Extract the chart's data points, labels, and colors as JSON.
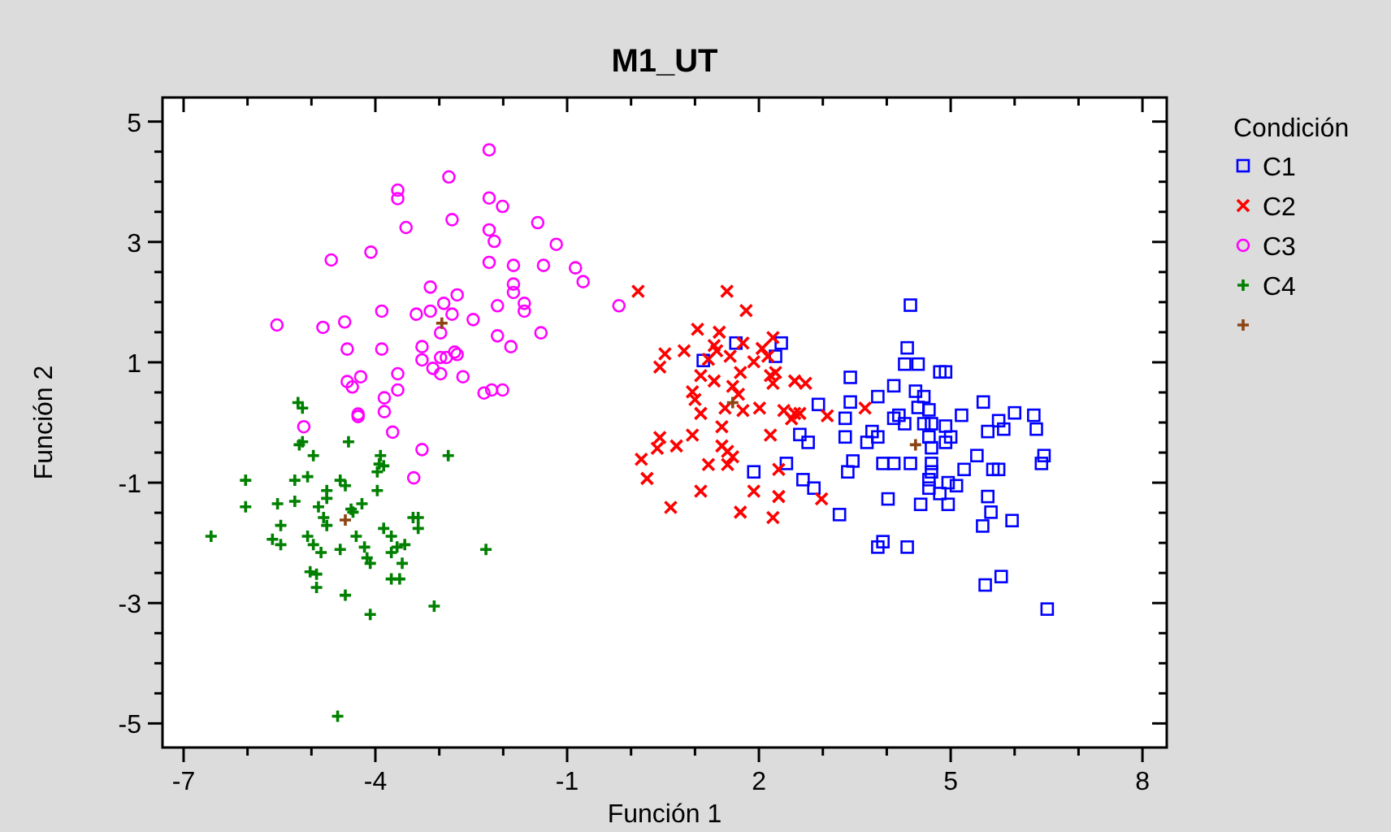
{
  "chart_data": {
    "type": "scatter",
    "title": "M1_UT",
    "xlabel": "Función 1",
    "ylabel": "Función 2",
    "legend_title": "Condición",
    "legend": "right",
    "grid": false,
    "xlim": [
      -7.33,
      8.38
    ],
    "ylim": [
      -5.4,
      5.4
    ],
    "xticks": [
      -7,
      {
        "value": -6,
        "label": null
      },
      {
        "value": -5,
        "label": null
      },
      -4,
      {
        "value": -3,
        "label": null
      },
      {
        "value": -2,
        "label": null
      },
      -1,
      {
        "value": 0,
        "label": null
      },
      {
        "value": 1,
        "label": null
      },
      2,
      {
        "value": 3,
        "label": null
      },
      {
        "value": 4,
        "label": null
      },
      5,
      {
        "value": 6,
        "label": null
      },
      {
        "value": 7,
        "label": null
      },
      8
    ],
    "yticks": [
      -5,
      {
        "value": -4.5,
        "label": null
      },
      {
        "value": -4,
        "label": null
      },
      {
        "value": -3.5,
        "label": null
      },
      -3,
      {
        "value": -2.5,
        "label": null
      },
      {
        "value": -2,
        "label": null
      },
      {
        "value": -1.5,
        "label": null
      },
      -1,
      {
        "value": -0.5,
        "label": null
      },
      {
        "value": 0,
        "label": null
      },
      {
        "value": 0.5,
        "label": null
      },
      1,
      {
        "value": 1.5,
        "label": null
      },
      {
        "value": 2,
        "label": null
      },
      {
        "value": 2.5,
        "label": null
      },
      3,
      {
        "value": 3.5,
        "label": null
      },
      {
        "value": 4,
        "label": null
      },
      {
        "value": 4.5,
        "label": null
      },
      5
    ],
    "series": [
      {
        "name": "C1",
        "color": "#0000ff",
        "marker": "square",
        "x": [
          1.64,
          2.35,
          2.26,
          1.13,
          3.43,
          3.43,
          2.93,
          3.86,
          3.35,
          2.64,
          2.77,
          3.35,
          3.77,
          2.43,
          1.92,
          2.69,
          2.86,
          3.47,
          3.26,
          4.37,
          4.32,
          4.28,
          4.49,
          4.11,
          4.45,
          4.58,
          4.83,
          4.92,
          4.49,
          4.66,
          4.11,
          4.19,
          4.28,
          4.58,
          4.7,
          4.92,
          5.17,
          5.51,
          6.0,
          6.3,
          5.75,
          5.83,
          5.58,
          6.34,
          3.86,
          3.69,
          4.66,
          4.92,
          5.0,
          4.7,
          6.46,
          6.42,
          5.41,
          3.39,
          3.94,
          4.11,
          4.37,
          4.7,
          4.7,
          5.21,
          5.66,
          5.75,
          4.66,
          4.96,
          5.09,
          4.66,
          4.83,
          5.58,
          4.02,
          4.53,
          4.96,
          5.63,
          5.5,
          5.96,
          3.94,
          3.86,
          4.32,
          5.79,
          5.54,
          6.51
        ],
        "values": [
          1.32,
          1.32,
          1.1,
          1.03,
          0.75,
          0.34,
          0.3,
          0.43,
          0.07,
          -0.2,
          -0.33,
          -0.24,
          -0.15,
          -0.68,
          -0.82,
          -0.95,
          -1.09,
          -0.64,
          -1.53,
          1.95,
          1.24,
          0.97,
          0.97,
          0.61,
          0.52,
          0.43,
          0.84,
          0.84,
          0.25,
          0.21,
          0.07,
          0.12,
          -0.02,
          -0.02,
          -0.02,
          -0.06,
          0.12,
          0.34,
          0.16,
          0.12,
          0.03,
          -0.11,
          -0.15,
          -0.11,
          -0.24,
          -0.33,
          -0.24,
          -0.33,
          -0.24,
          -0.42,
          -0.55,
          -0.68,
          -0.55,
          -0.82,
          -0.68,
          -0.68,
          -0.68,
          -0.68,
          -0.82,
          -0.78,
          -0.78,
          -0.78,
          -0.95,
          -1.0,
          -1.05,
          -1.09,
          -1.18,
          -1.23,
          -1.27,
          -1.36,
          -1.36,
          -1.49,
          -1.72,
          -1.63,
          -1.98,
          -2.07,
          -2.07,
          -2.56,
          -2.7,
          -3.1
        ]
      },
      {
        "name": "C2",
        "color": "#ff0000",
        "marker": "cross",
        "x": [
          0.11,
          1.5,
          1.8,
          1.04,
          1.38,
          1.3,
          1.34,
          0.53,
          0.83,
          0.45,
          1.21,
          1.55,
          1.75,
          2.05,
          2.22,
          1.92,
          2.14,
          1.09,
          1.3,
          1.71,
          2.18,
          2.26,
          2.22,
          2.56,
          2.73,
          1.59,
          1.68,
          0.96,
          1.0,
          1.09,
          1.47,
          1.75,
          2.01,
          2.39,
          2.56,
          2.64,
          2.51,
          3.07,
          3.66,
          1.42,
          2.18,
          0.96,
          0.45,
          0.41,
          0.71,
          0.16,
          1.42,
          1.51,
          1.59,
          1.21,
          1.51,
          0.25,
          2.31,
          1.09,
          1.92,
          2.31,
          2.98,
          0.62,
          1.71,
          2.22
        ],
        "values": [
          2.18,
          2.18,
          1.86,
          1.55,
          1.5,
          1.28,
          1.19,
          1.14,
          1.19,
          0.92,
          1.05,
          1.1,
          1.32,
          1.23,
          1.41,
          1.01,
          1.1,
          0.78,
          0.69,
          0.83,
          0.78,
          0.83,
          0.65,
          0.69,
          0.65,
          0.6,
          0.47,
          0.51,
          0.38,
          0.15,
          0.24,
          0.2,
          0.24,
          0.2,
          0.15,
          0.15,
          0.06,
          0.11,
          0.24,
          -0.07,
          -0.21,
          -0.21,
          -0.25,
          -0.43,
          -0.39,
          -0.61,
          -0.39,
          -0.48,
          -0.57,
          -0.7,
          -0.7,
          -0.93,
          -0.78,
          -1.14,
          -1.14,
          -1.23,
          -1.27,
          -1.41,
          -1.49,
          -1.58
        ]
      },
      {
        "name": "C3",
        "color": "#ff00ff",
        "marker": "circle",
        "x": [
          -2.22,
          -2.85,
          -3.65,
          -3.65,
          -2.22,
          -2.01,
          -3.52,
          -2.8,
          -1.46,
          -2.22,
          -2.14,
          -1.17,
          -4.69,
          -4.07,
          -2.22,
          -1.84,
          -1.37,
          -0.87,
          -0.75,
          -1.84,
          -1.84,
          -3.14,
          -2.72,
          -2.93,
          -2.09,
          -1.67,
          -1.67,
          -0.19,
          -5.54,
          -4.82,
          -4.48,
          -3.9,
          -3.36,
          -3.14,
          -2.8,
          -2.47,
          -2.98,
          -2.09,
          -1.41,
          -1.88,
          -4.44,
          -3.9,
          -3.27,
          -3.27,
          -2.98,
          -2.89,
          -2.76,
          -2.72,
          -3.1,
          -2.98,
          -2.63,
          -3.65,
          -3.65,
          -4.44,
          -4.36,
          -4.23,
          -2.3,
          -2.18,
          -2.01,
          -3.86,
          -3.86,
          -4.27,
          -4.27,
          -5.12,
          -3.73,
          -3.27,
          -3.4
        ],
        "values": [
          4.53,
          4.08,
          3.86,
          3.72,
          3.73,
          3.59,
          3.24,
          3.37,
          3.32,
          3.2,
          3.01,
          2.96,
          2.7,
          2.83,
          2.66,
          2.61,
          2.61,
          2.57,
          2.34,
          2.3,
          2.16,
          2.25,
          2.12,
          1.98,
          1.94,
          1.98,
          1.85,
          1.94,
          1.62,
          1.58,
          1.67,
          1.85,
          1.8,
          1.85,
          1.8,
          1.71,
          1.49,
          1.44,
          1.49,
          1.26,
          1.22,
          1.22,
          1.26,
          1.04,
          1.08,
          1.08,
          1.17,
          1.13,
          0.9,
          0.81,
          0.76,
          0.81,
          0.54,
          0.68,
          0.59,
          0.76,
          0.49,
          0.54,
          0.54,
          0.41,
          0.18,
          0.14,
          0.1,
          -0.07,
          -0.16,
          -0.45,
          -0.92
        ]
      },
      {
        "name": "C4",
        "color": "#008000",
        "marker": "plus",
        "x": [
          -5.21,
          -5.14,
          -5.14,
          -5.19,
          -4.42,
          -4.97,
          -3.92,
          -2.86,
          -3.94,
          -3.87,
          -3.97,
          -6.03,
          -5.26,
          -5.06,
          -4.55,
          -4.47,
          -4.76,
          -4.76,
          -3.97,
          -6.03,
          -5.53,
          -5.26,
          -4.89,
          -4.21,
          -4.38,
          -4.35,
          -4.81,
          -4.76,
          -5.48,
          -6.57,
          -5.61,
          -5.48,
          -5.06,
          -4.97,
          -4.85,
          -4.55,
          -4.3,
          -4.17,
          -4.13,
          -4.08,
          -3.87,
          -3.75,
          -3.66,
          -3.54,
          -3.75,
          -3.58,
          -3.41,
          -3.33,
          -3.33,
          -2.27,
          -5.02,
          -4.92,
          -4.92,
          -3.75,
          -3.62,
          -4.47,
          -4.08,
          -3.08,
          -4.59
        ],
        "values": [
          0.33,
          0.24,
          -0.32,
          -0.37,
          -0.32,
          -0.55,
          -0.55,
          -0.55,
          -0.69,
          -0.72,
          -0.82,
          -0.96,
          -0.96,
          -0.9,
          -0.96,
          -1.05,
          -1.13,
          -1.26,
          -1.13,
          -1.4,
          -1.35,
          -1.31,
          -1.4,
          -1.35,
          -1.44,
          -1.49,
          -1.58,
          -1.71,
          -1.71,
          -1.89,
          -1.94,
          -2.03,
          -1.89,
          -2.03,
          -2.16,
          -2.11,
          -1.89,
          -2.07,
          -2.25,
          -2.34,
          -1.76,
          -1.89,
          -2.07,
          -2.03,
          -2.16,
          -2.34,
          -1.58,
          -1.58,
          -1.76,
          -2.11,
          -2.48,
          -2.52,
          -2.74,
          -2.6,
          -2.6,
          -2.87,
          -3.19,
          -3.05,
          -4.88
        ]
      },
      {
        "color": "#8b4513",
        "marker": "plus",
        "x": [
          4.45,
          1.59,
          -2.96,
          -4.47
        ],
        "values": [
          -0.37,
          0.33,
          1.65,
          -1.62
        ]
      }
    ]
  }
}
